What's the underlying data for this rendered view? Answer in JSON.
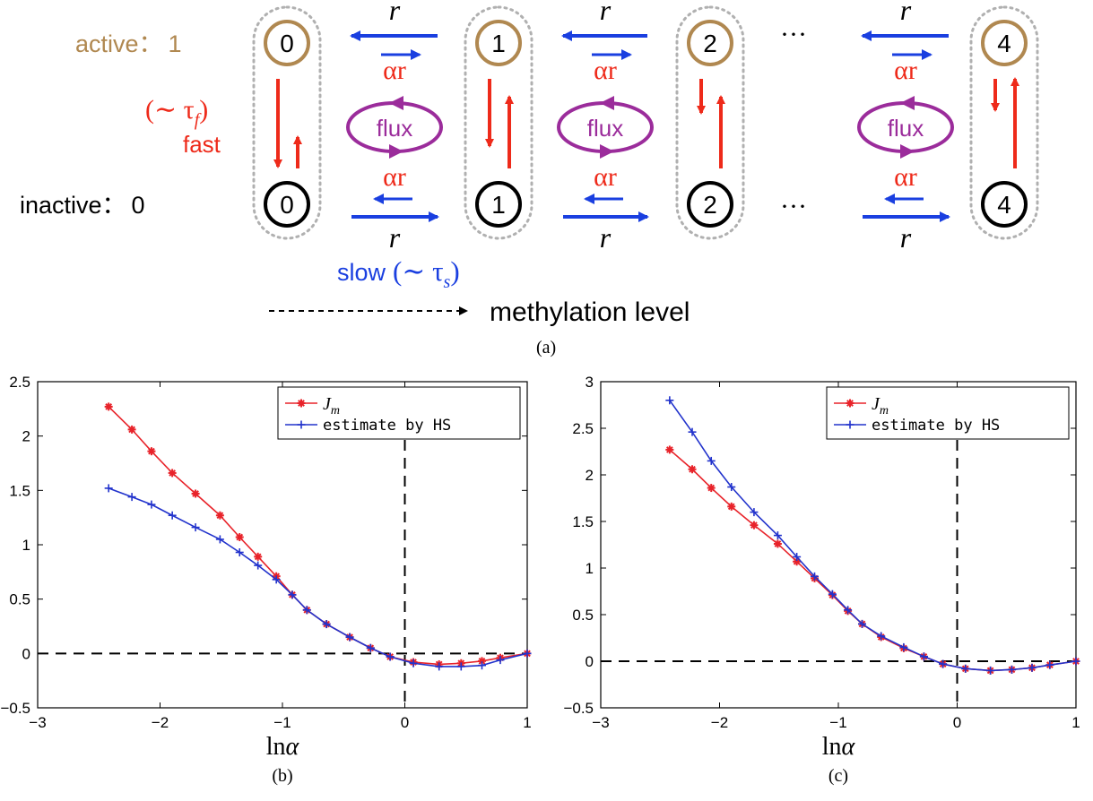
{
  "diagram": {
    "active_label": "active",
    "active_value": "1",
    "inactive_label": "inactive",
    "inactive_value": "0",
    "fast_symbol": "(∼ τ",
    "fast_subscript": "f",
    "fast_close": ")",
    "fast_word": "fast",
    "slow_word": "slow",
    "slow_symbol": "(∼ τ",
    "slow_subscript": "s",
    "slow_close": ")",
    "rate_r": "r",
    "rate_alpha_r": "αr",
    "flux_label": "flux",
    "ellipsis": "···",
    "methylation_label": "methylation level",
    "states": [
      "0",
      "1",
      "2",
      "4"
    ],
    "caption": "(a)",
    "colors": {
      "active_state": "#b08850",
      "inactive_state": "#000000",
      "fast": "#ee2a1a",
      "slow": "#1a3fe0",
      "flux": "#9b2c9b"
    }
  },
  "panels": [
    {
      "caption": "(b)",
      "xlabel": "lnα",
      "legend": [
        "J",
        "estimate by HS"
      ],
      "legend_sub": "m"
    },
    {
      "caption": "(c)",
      "xlabel": "lnα",
      "legend": [
        "J",
        "estimate by HS"
      ],
      "legend_sub": "m"
    }
  ],
  "chart_data": [
    {
      "type": "line",
      "xlabel": "lnα",
      "ylabel": "",
      "xlim": [
        -3,
        1
      ],
      "ylim": [
        -0.5,
        2.5
      ],
      "xticks": [
        -3,
        -2,
        -1,
        0,
        1
      ],
      "yticks": [
        -0.5,
        0,
        0.5,
        1,
        1.5,
        2,
        2.5
      ],
      "xtick_labels": [
        "−3",
        "−2",
        "−1",
        "0",
        "1"
      ],
      "ytick_labels": [
        "−0.5",
        "0",
        "0.5",
        "1",
        "1.5",
        "2",
        "2.5"
      ],
      "legend_position": "top-right",
      "grid": false,
      "reference_lines": {
        "vertical_x": 0,
        "horizontal_y": 0
      },
      "x": [
        -2.42,
        -2.23,
        -2.07,
        -1.9,
        -1.71,
        -1.51,
        -1.35,
        -1.2,
        -1.05,
        -0.92,
        -0.8,
        -0.64,
        -0.45,
        -0.28,
        -0.12,
        0.07,
        0.28,
        0.46,
        0.63,
        0.78,
        1.0
      ],
      "series": [
        {
          "name": "J_m",
          "color": "#e8232a",
          "marker": "asterisk",
          "values": [
            2.27,
            2.06,
            1.86,
            1.66,
            1.47,
            1.27,
            1.07,
            0.89,
            0.71,
            0.54,
            0.4,
            0.27,
            0.15,
            0.05,
            -0.03,
            -0.08,
            -0.1,
            -0.09,
            -0.07,
            -0.04,
            0.0
          ]
        },
        {
          "name": "estimate by HS",
          "color": "#2233cc",
          "marker": "plus",
          "values": [
            1.52,
            1.44,
            1.37,
            1.27,
            1.16,
            1.05,
            0.93,
            0.81,
            0.68,
            0.54,
            0.4,
            0.27,
            0.15,
            0.05,
            -0.03,
            -0.09,
            -0.12,
            -0.12,
            -0.11,
            -0.06,
            0.0
          ]
        }
      ]
    },
    {
      "type": "line",
      "xlabel": "lnα",
      "ylabel": "",
      "xlim": [
        -3,
        1
      ],
      "ylim": [
        -0.5,
        3
      ],
      "xticks": [
        -3,
        -2,
        -1,
        0,
        1
      ],
      "yticks": [
        -0.5,
        0,
        0.5,
        1,
        1.5,
        2,
        2.5,
        3
      ],
      "xtick_labels": [
        "−3",
        "−2",
        "−1",
        "0",
        "1"
      ],
      "ytick_labels": [
        "−0.5",
        "0",
        "0.5",
        "1",
        "1.5",
        "2",
        "2.5",
        "3"
      ],
      "legend_position": "top-right",
      "grid": false,
      "reference_lines": {
        "vertical_x": 0,
        "horizontal_y": 0
      },
      "x": [
        -2.42,
        -2.23,
        -2.07,
        -1.9,
        -1.71,
        -1.51,
        -1.35,
        -1.2,
        -1.05,
        -0.92,
        -0.8,
        -0.64,
        -0.45,
        -0.28,
        -0.12,
        0.07,
        0.28,
        0.46,
        0.63,
        0.78,
        1.0
      ],
      "series": [
        {
          "name": "J_m",
          "color": "#e8232a",
          "marker": "asterisk",
          "values": [
            2.27,
            2.06,
            1.86,
            1.66,
            1.46,
            1.26,
            1.07,
            0.89,
            0.71,
            0.54,
            0.4,
            0.26,
            0.14,
            0.05,
            -0.03,
            -0.08,
            -0.1,
            -0.09,
            -0.07,
            -0.04,
            0.0
          ]
        },
        {
          "name": "estimate by HS",
          "color": "#2233cc",
          "marker": "plus",
          "values": [
            2.8,
            2.46,
            2.15,
            1.87,
            1.6,
            1.35,
            1.12,
            0.91,
            0.72,
            0.55,
            0.4,
            0.27,
            0.15,
            0.05,
            -0.03,
            -0.08,
            -0.1,
            -0.09,
            -0.07,
            -0.04,
            0.0
          ]
        }
      ]
    }
  ]
}
